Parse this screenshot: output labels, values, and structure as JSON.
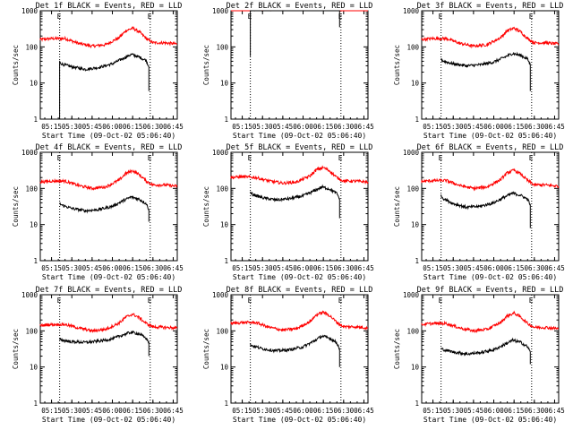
{
  "figure": {
    "background": "#ffffff",
    "axis_color": "#000000"
  },
  "chart_data": [
    {
      "type": "line",
      "title": "Det 1f BLACK = Events, RED = LLD",
      "xlabel": "Start Time (09-Oct-02 05:06:40)",
      "ylabel": "Counts/sec",
      "xtick_labels": [
        "05:15",
        "05:30",
        "05:45",
        "06:00",
        "06:15",
        "06:30",
        "06:45"
      ],
      "ytick_labels": [
        "1",
        "10",
        "100",
        "1000"
      ],
      "ylim": [
        1,
        1000
      ],
      "yscale": "log",
      "markers": [
        {
          "time": "05:21",
          "label": "E"
        },
        {
          "time": "06:28",
          "label": "E"
        }
      ],
      "series": [
        {
          "color": "#ff0000",
          "x": [
            "05:06",
            "05:15",
            "05:25",
            "05:35",
            "05:45",
            "05:55",
            "06:05",
            "06:10",
            "06:15",
            "06:20",
            "06:25",
            "06:30",
            "06:38",
            "06:48"
          ],
          "y": [
            160,
            170,
            170,
            125,
            105,
            115,
            180,
            280,
            330,
            260,
            170,
            130,
            130,
            120
          ]
        },
        {
          "color": "#000000",
          "x": [
            "05:21",
            "05:21",
            "05:23",
            "05:30",
            "05:40",
            "05:50",
            "06:00",
            "06:08",
            "06:14",
            "06:20",
            "06:25",
            "06:27",
            "06:27"
          ],
          "y": [
            1,
            38,
            33,
            28,
            24,
            27,
            34,
            48,
            62,
            52,
            42,
            28,
            6
          ]
        }
      ]
    },
    {
      "type": "line",
      "title": "Det 2f BLACK = Events, RED = LLD",
      "xlabel": "Start Time (09-Oct-02 05:06:40)",
      "ylabel": "Counts/sec",
      "xtick_labels": [
        "05:15",
        "05:30",
        "05:45",
        "06:00",
        "06:15",
        "06:30",
        "06:45"
      ],
      "ytick_labels": [
        "1",
        "10",
        "100",
        "1000"
      ],
      "ylim": [
        1,
        1000
      ],
      "yscale": "log",
      "markers": [
        {
          "time": "05:21",
          "label": "E"
        },
        {
          "time": "06:28",
          "label": "E"
        }
      ],
      "series": [
        {
          "color": "#ff0000",
          "x": [
            "05:06",
            "05:20",
            "05:40",
            "06:00",
            "06:15",
            "06:30",
            "06:48"
          ],
          "y": [
            1150,
            1150,
            1150,
            1150,
            1150,
            1150,
            1150
          ]
        },
        {
          "color": "#000000",
          "x": [
            "05:21",
            "05:21",
            "05:30",
            "05:45",
            "06:00",
            "06:15",
            "06:25",
            "06:27",
            "06:27"
          ],
          "y": [
            55,
            1100,
            1050,
            1150,
            1250,
            1350,
            1150,
            1000,
            350
          ]
        }
      ]
    },
    {
      "type": "line",
      "title": "Det 3f BLACK = Events, RED = LLD",
      "xlabel": "Start Time (09-Oct-02 05:06:40)",
      "ylabel": "Counts/sec",
      "xtick_labels": [
        "05:15",
        "05:30",
        "05:45",
        "06:00",
        "06:15",
        "06:30",
        "06:45"
      ],
      "ytick_labels": [
        "1",
        "10",
        "100",
        "1000"
      ],
      "ylim": [
        1,
        1000
      ],
      "yscale": "log",
      "markers": [
        {
          "time": "05:21",
          "label": "E"
        },
        {
          "time": "06:28",
          "label": "E"
        }
      ],
      "series": [
        {
          "color": "#ff0000",
          "x": [
            "05:06",
            "05:15",
            "05:25",
            "05:35",
            "05:45",
            "05:55",
            "06:05",
            "06:10",
            "06:15",
            "06:20",
            "06:25",
            "06:30",
            "06:38",
            "06:48"
          ],
          "y": [
            160,
            170,
            170,
            125,
            105,
            115,
            180,
            280,
            330,
            260,
            170,
            130,
            130,
            120
          ]
        },
        {
          "color": "#000000",
          "x": [
            "05:21",
            "05:23",
            "05:30",
            "05:40",
            "05:50",
            "06:00",
            "06:08",
            "06:14",
            "06:20",
            "06:25",
            "06:27",
            "06:27"
          ],
          "y": [
            45,
            40,
            34,
            30,
            32,
            38,
            52,
            66,
            58,
            46,
            32,
            6
          ]
        }
      ]
    },
    {
      "type": "line",
      "title": "Det 4f BLACK = Events, RED = LLD",
      "xlabel": "Start Time (09-Oct-02 05:06:40)",
      "ylabel": "Counts/sec",
      "xtick_labels": [
        "05:15",
        "05:30",
        "05:45",
        "06:00",
        "06:15",
        "06:30",
        "06:45"
      ],
      "ytick_labels": [
        "1",
        "10",
        "100",
        "1000"
      ],
      "ylim": [
        1,
        1000
      ],
      "yscale": "log",
      "markers": [
        {
          "time": "05:21",
          "label": "E"
        },
        {
          "time": "06:28",
          "label": "E"
        }
      ],
      "series": [
        {
          "color": "#ff0000",
          "x": [
            "05:06",
            "05:15",
            "05:25",
            "05:35",
            "05:45",
            "05:55",
            "06:05",
            "06:10",
            "06:15",
            "06:20",
            "06:25",
            "06:30",
            "06:38",
            "06:48"
          ],
          "y": [
            150,
            160,
            160,
            120,
            100,
            110,
            170,
            260,
            310,
            240,
            160,
            125,
            125,
            115
          ]
        },
        {
          "color": "#000000",
          "x": [
            "05:21",
            "05:23",
            "05:30",
            "05:40",
            "05:50",
            "06:00",
            "06:08",
            "06:14",
            "06:20",
            "06:25",
            "06:27",
            "06:27"
          ],
          "y": [
            38,
            34,
            28,
            24,
            26,
            32,
            46,
            58,
            50,
            38,
            26,
            12
          ]
        }
      ]
    },
    {
      "type": "line",
      "title": "Det 5f BLACK = Events, RED = LLD",
      "xlabel": "Start Time (09-Oct-02 05:06:40)",
      "ylabel": "Counts/sec",
      "xtick_labels": [
        "05:15",
        "05:30",
        "05:45",
        "06:00",
        "06:15",
        "06:30",
        "06:45"
      ],
      "ytick_labels": [
        "1",
        "10",
        "100",
        "1000"
      ],
      "ylim": [
        1,
        1000
      ],
      "yscale": "log",
      "markers": [
        {
          "time": "05:21",
          "label": "E"
        },
        {
          "time": "06:28",
          "label": "E"
        }
      ],
      "series": [
        {
          "color": "#ff0000",
          "x": [
            "05:06",
            "05:15",
            "05:25",
            "05:35",
            "05:45",
            "05:55",
            "06:05",
            "06:10",
            "06:15",
            "06:20",
            "06:25",
            "06:30",
            "06:38",
            "06:48"
          ],
          "y": [
            200,
            210,
            200,
            160,
            140,
            150,
            220,
            330,
            380,
            300,
            200,
            160,
            160,
            150
          ]
        },
        {
          "color": "#000000",
          "x": [
            "05:21",
            "05:23",
            "05:30",
            "05:40",
            "05:50",
            "06:00",
            "06:08",
            "06:14",
            "06:20",
            "06:25",
            "06:27",
            "06:27"
          ],
          "y": [
            75,
            68,
            55,
            48,
            52,
            62,
            85,
            110,
            95,
            72,
            52,
            15
          ]
        }
      ]
    },
    {
      "type": "line",
      "title": "Det 6f BLACK = Events, RED = LLD",
      "xlabel": "Start Time (09-Oct-02 05:06:40)",
      "ylabel": "Counts/sec",
      "xtick_labels": [
        "05:15",
        "05:30",
        "05:45",
        "06:00",
        "06:15",
        "06:30",
        "06:45"
      ],
      "ytick_labels": [
        "1",
        "10",
        "100",
        "1000"
      ],
      "ylim": [
        1,
        1000
      ],
      "yscale": "log",
      "markers": [
        {
          "time": "05:21",
          "label": "E"
        },
        {
          "time": "06:28",
          "label": "E"
        }
      ],
      "series": [
        {
          "color": "#ff0000",
          "x": [
            "05:06",
            "05:15",
            "05:25",
            "05:35",
            "05:45",
            "05:55",
            "06:05",
            "06:10",
            "06:15",
            "06:20",
            "06:25",
            "06:30",
            "06:38",
            "06:48"
          ],
          "y": [
            155,
            165,
            165,
            120,
            100,
            110,
            175,
            270,
            320,
            250,
            165,
            125,
            125,
            115
          ]
        },
        {
          "color": "#000000",
          "x": [
            "05:21",
            "05:23",
            "05:30",
            "05:40",
            "05:50",
            "06:00",
            "06:08",
            "06:14",
            "06:20",
            "06:25",
            "06:27",
            "06:27"
          ],
          "y": [
            62,
            52,
            38,
            30,
            32,
            40,
            58,
            74,
            64,
            50,
            36,
            8
          ]
        }
      ]
    },
    {
      "type": "line",
      "title": "Det 7f BLACK = Events, RED = LLD",
      "xlabel": "Start Time (09-Oct-02 05:06:40)",
      "ylabel": "Counts/sec",
      "xtick_labels": [
        "05:15",
        "05:30",
        "05:45",
        "06:00",
        "06:15",
        "06:30",
        "06:45"
      ],
      "ytick_labels": [
        "1",
        "10",
        "100",
        "1000"
      ],
      "ylim": [
        1,
        1000
      ],
      "yscale": "log",
      "markers": [
        {
          "time": "05:21",
          "label": "E"
        },
        {
          "time": "06:28",
          "label": "E"
        }
      ],
      "series": [
        {
          "color": "#ff0000",
          "x": [
            "05:06",
            "05:15",
            "05:25",
            "05:35",
            "05:45",
            "05:55",
            "06:05",
            "06:10",
            "06:15",
            "06:20",
            "06:25",
            "06:30",
            "06:38",
            "06:48"
          ],
          "y": [
            140,
            150,
            150,
            120,
            100,
            110,
            165,
            240,
            290,
            230,
            160,
            130,
            125,
            120
          ]
        },
        {
          "color": "#000000",
          "x": [
            "05:21",
            "05:23",
            "05:30",
            "05:40",
            "05:50",
            "06:00",
            "06:08",
            "06:14",
            "06:20",
            "06:25",
            "06:27",
            "06:27"
          ],
          "y": [
            58,
            55,
            50,
            48,
            52,
            60,
            78,
            92,
            82,
            62,
            48,
            20
          ]
        }
      ]
    },
    {
      "type": "line",
      "title": "Det 8f BLACK = Events, RED = LLD",
      "xlabel": "Start Time (09-Oct-02 05:06:40)",
      "ylabel": "Counts/sec",
      "xtick_labels": [
        "05:15",
        "05:30",
        "05:45",
        "06:00",
        "06:15",
        "06:30",
        "06:45"
      ],
      "ytick_labels": [
        "1",
        "10",
        "100",
        "1000"
      ],
      "ylim": [
        1,
        1000
      ],
      "yscale": "log",
      "markers": [
        {
          "time": "05:21",
          "label": "E"
        },
        {
          "time": "06:28",
          "label": "E"
        }
      ],
      "series": [
        {
          "color": "#ff0000",
          "x": [
            "05:06",
            "05:15",
            "05:25",
            "05:35",
            "05:45",
            "05:55",
            "06:05",
            "06:10",
            "06:15",
            "06:20",
            "06:25",
            "06:30",
            "06:38",
            "06:48"
          ],
          "y": [
            160,
            170,
            170,
            125,
            105,
            115,
            180,
            280,
            330,
            260,
            170,
            130,
            130,
            120
          ]
        },
        {
          "color": "#000000",
          "x": [
            "05:21",
            "05:23",
            "05:30",
            "05:40",
            "05:50",
            "06:00",
            "06:08",
            "06:14",
            "06:20",
            "06:25",
            "06:27",
            "06:27"
          ],
          "y": [
            42,
            38,
            32,
            28,
            30,
            36,
            52,
            72,
            62,
            46,
            32,
            10
          ]
        }
      ]
    },
    {
      "type": "line",
      "title": "Det 9f BLACK = Events, RED = LLD",
      "xlabel": "Start Time (09-Oct-02 05:06:40)",
      "ylabel": "Counts/sec",
      "xtick_labels": [
        "05:15",
        "05:30",
        "05:45",
        "06:00",
        "06:15",
        "06:30",
        "06:45"
      ],
      "ytick_labels": [
        "1",
        "10",
        "100",
        "1000"
      ],
      "ylim": [
        1,
        1000
      ],
      "yscale": "log",
      "markers": [
        {
          "time": "05:21",
          "label": "E"
        },
        {
          "time": "06:28",
          "label": "E"
        }
      ],
      "series": [
        {
          "color": "#ff0000",
          "x": [
            "05:06",
            "05:15",
            "05:25",
            "05:35",
            "05:45",
            "05:55",
            "06:05",
            "06:10",
            "06:15",
            "06:20",
            "06:25",
            "06:30",
            "06:38",
            "06:48"
          ],
          "y": [
            150,
            160,
            160,
            120,
            100,
            110,
            170,
            260,
            310,
            240,
            160,
            125,
            125,
            115
          ]
        },
        {
          "color": "#000000",
          "x": [
            "05:21",
            "05:23",
            "05:30",
            "05:40",
            "05:50",
            "06:00",
            "06:08",
            "06:14",
            "06:20",
            "06:25",
            "06:27",
            "06:27"
          ],
          "y": [
            32,
            30,
            26,
            23,
            25,
            30,
            42,
            55,
            48,
            36,
            26,
            12
          ]
        }
      ]
    }
  ]
}
